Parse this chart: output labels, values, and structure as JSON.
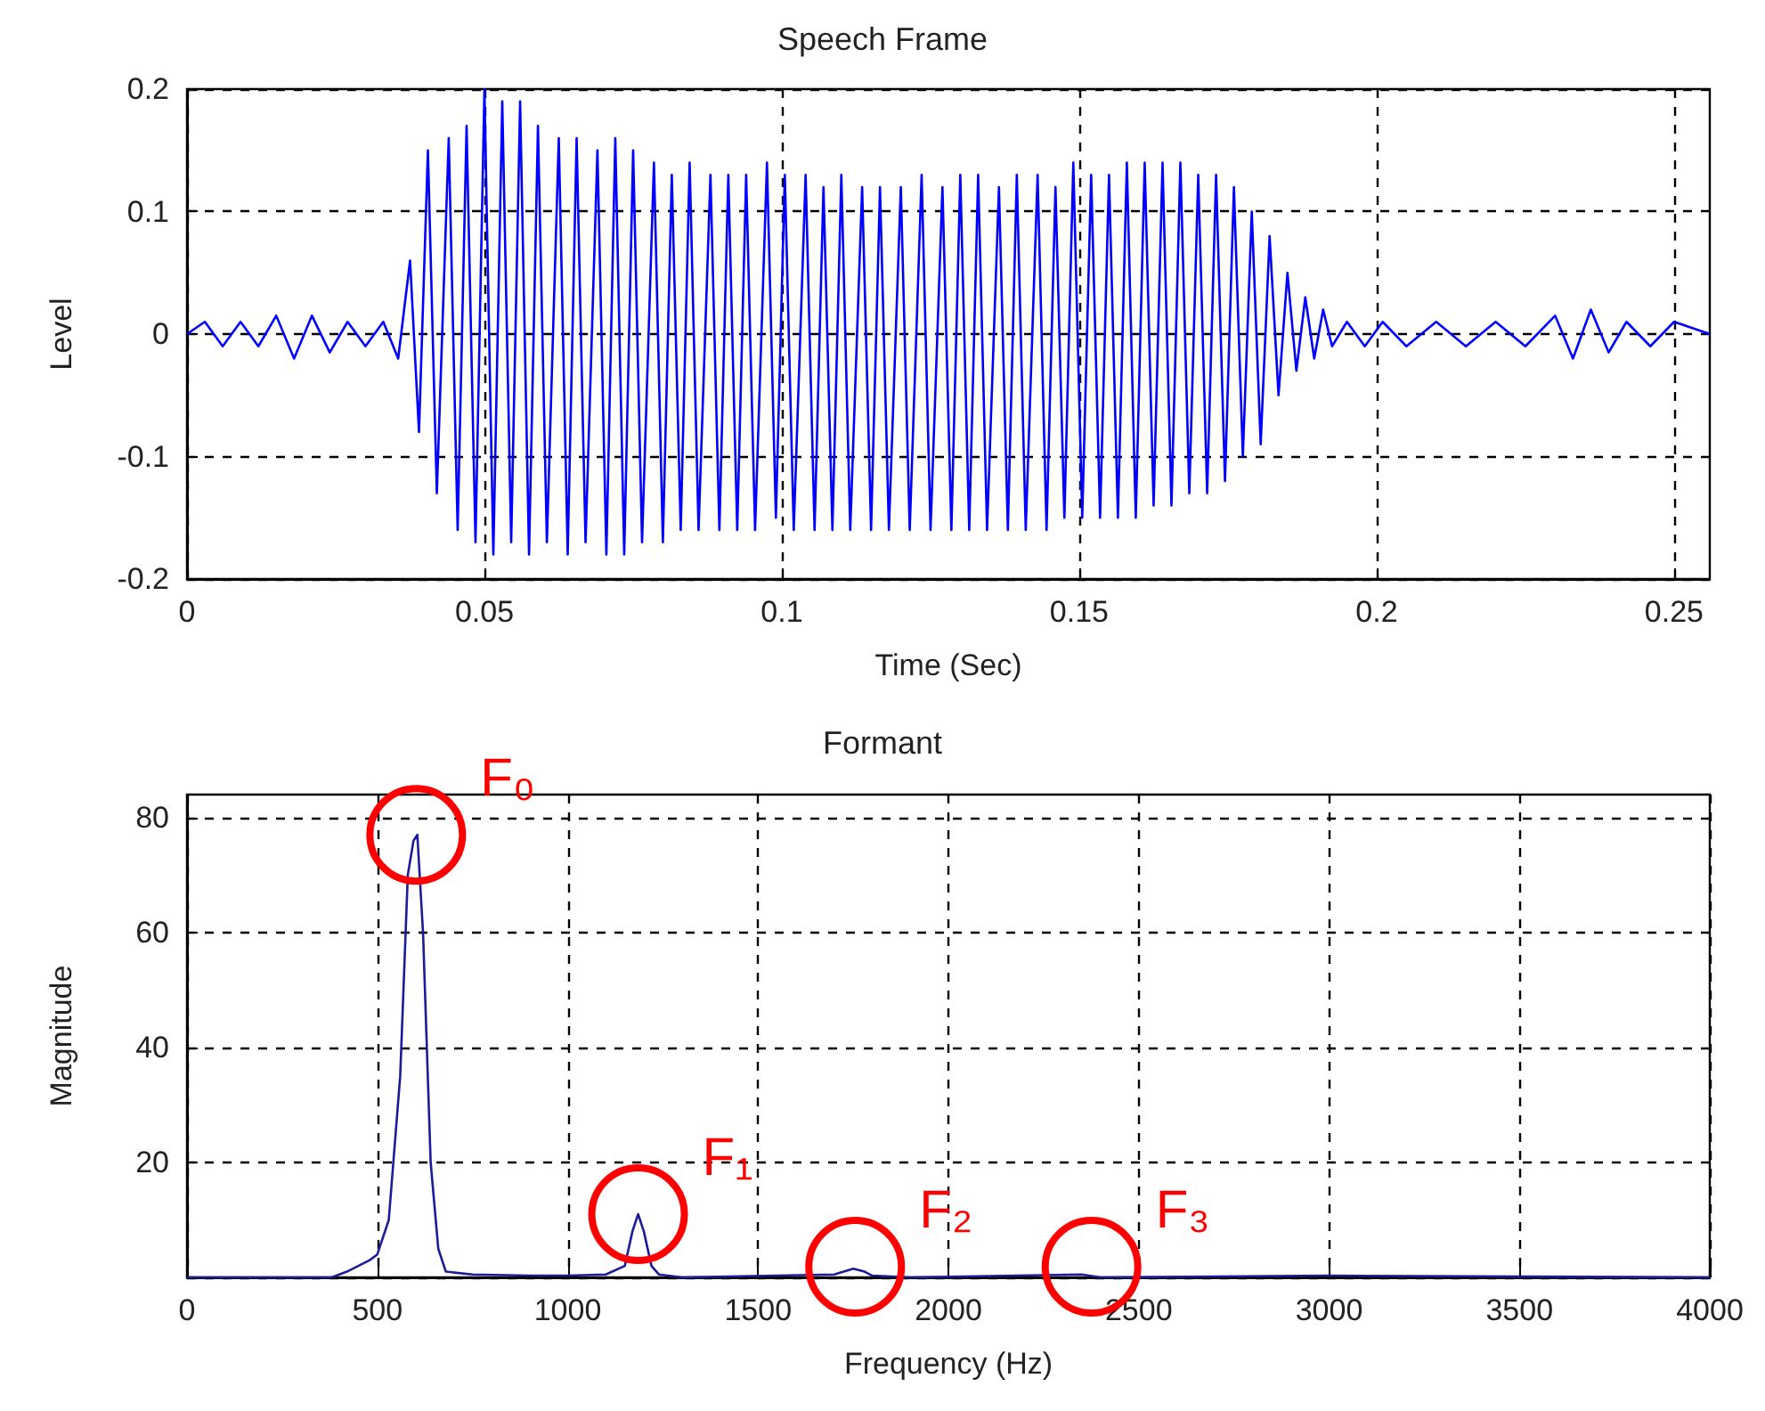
{
  "chart_data": [
    {
      "type": "line",
      "title": "Speech Frame",
      "xlabel": "Time (Sec)",
      "ylabel": "Level",
      "xlim": [
        0,
        0.256
      ],
      "ylim": [
        -0.2,
        0.2
      ],
      "xticks": [
        0,
        0.05,
        0.1,
        0.15,
        0.2,
        0.25
      ],
      "yticks": [
        -0.2,
        -0.1,
        0,
        0.1,
        0.2
      ],
      "grid": true,
      "marker": "none",
      "line_style": "solid",
      "series": [
        {
          "color": "#0000ff",
          "x": [
            0,
            0.003,
            0.006,
            0.009,
            0.012,
            0.015,
            0.018,
            0.021,
            0.024,
            0.027,
            0.03,
            0.033,
            0.0355,
            0.0375,
            0.039,
            0.0405,
            0.042,
            0.044,
            0.0455,
            0.047,
            0.0485,
            0.05,
            0.0515,
            0.053,
            0.0545,
            0.056,
            0.0575,
            0.059,
            0.0605,
            0.0625,
            0.064,
            0.0655,
            0.067,
            0.069,
            0.0705,
            0.072,
            0.0735,
            0.075,
            0.0765,
            0.0785,
            0.08,
            0.0815,
            0.083,
            0.0845,
            0.086,
            0.088,
            0.0895,
            0.091,
            0.0925,
            0.094,
            0.0955,
            0.0975,
            0.099,
            0.1005,
            0.102,
            0.104,
            0.1055,
            0.107,
            0.1085,
            0.11,
            0.1115,
            0.1135,
            0.115,
            0.1165,
            0.118,
            0.12,
            0.1215,
            0.1235,
            0.125,
            0.127,
            0.1285,
            0.13,
            0.1315,
            0.133,
            0.1345,
            0.1365,
            0.138,
            0.1395,
            0.141,
            0.143,
            0.1445,
            0.146,
            0.1475,
            0.149,
            0.1505,
            0.152,
            0.1535,
            0.155,
            0.1565,
            0.158,
            0.1595,
            0.161,
            0.1625,
            0.164,
            0.1655,
            0.167,
            0.1685,
            0.17,
            0.1715,
            0.173,
            0.1745,
            0.176,
            0.1775,
            0.179,
            0.1805,
            0.182,
            0.1835,
            0.185,
            0.1865,
            0.188,
            0.1895,
            0.191,
            0.1925,
            0.195,
            0.198,
            0.201,
            0.205,
            0.21,
            0.215,
            0.22,
            0.225,
            0.23,
            0.233,
            0.236,
            0.239,
            0.242,
            0.246,
            0.25,
            0.256
          ],
          "values": [
            0,
            0.01,
            -0.01,
            0.01,
            -0.01,
            0.015,
            -0.02,
            0.015,
            -0.015,
            0.01,
            -0.01,
            0.01,
            -0.02,
            0.06,
            -0.08,
            0.15,
            -0.13,
            0.16,
            -0.16,
            0.17,
            -0.17,
            0.2,
            -0.18,
            0.19,
            -0.17,
            0.19,
            -0.18,
            0.17,
            -0.17,
            0.16,
            -0.18,
            0.16,
            -0.17,
            0.15,
            -0.18,
            0.16,
            -0.18,
            0.15,
            -0.17,
            0.14,
            -0.17,
            0.13,
            -0.16,
            0.14,
            -0.16,
            0.13,
            -0.16,
            0.13,
            -0.16,
            0.13,
            -0.16,
            0.14,
            -0.15,
            0.13,
            -0.16,
            0.13,
            -0.16,
            0.12,
            -0.16,
            0.13,
            -0.16,
            0.12,
            -0.16,
            0.12,
            -0.16,
            0.12,
            -0.16,
            0.13,
            -0.16,
            0.12,
            -0.16,
            0.13,
            -0.16,
            0.13,
            -0.16,
            0.12,
            -0.16,
            0.13,
            -0.16,
            0.13,
            -0.16,
            0.12,
            -0.15,
            0.14,
            -0.15,
            0.13,
            -0.15,
            0.13,
            -0.15,
            0.14,
            -0.15,
            0.14,
            -0.14,
            0.14,
            -0.14,
            0.14,
            -0.13,
            0.13,
            -0.13,
            0.13,
            -0.12,
            0.12,
            -0.1,
            0.1,
            -0.09,
            0.08,
            -0.05,
            0.05,
            -0.03,
            0.03,
            -0.02,
            0.02,
            -0.01,
            0.01,
            -0.01,
            0.01,
            -0.01,
            0.01,
            -0.01,
            0.01,
            -0.01,
            0.015,
            -0.02,
            0.02,
            -0.015,
            0.01,
            -0.01,
            0.01,
            0
          ]
        }
      ]
    },
    {
      "type": "line",
      "title": "Formant",
      "xlabel": "Frequency (Hz)",
      "ylabel": "Magnitude",
      "xlim": [
        0,
        4000
      ],
      "ylim": [
        0,
        84
      ],
      "xticks": [
        0,
        500,
        1000,
        1500,
        2000,
        2500,
        3000,
        3500,
        4000
      ],
      "yticks": [
        {
          "value": 0,
          "label": null
        },
        20,
        40,
        60,
        80
      ],
      "grid": true,
      "marker": "none",
      "line_style": "solid",
      "series": [
        {
          "color": "#1c1c9a",
          "x": [
            0,
            380,
            420,
            480,
            500,
            530,
            560,
            580,
            595,
            605,
            620,
            640,
            660,
            680,
            750,
            900,
            1000,
            1100,
            1150,
            1170,
            1185,
            1200,
            1220,
            1240,
            1300,
            1700,
            1750,
            1780,
            1800,
            1900,
            2350,
            2400,
            3000,
            4000
          ],
          "values": [
            0,
            0,
            1,
            3,
            4,
            10,
            35,
            70,
            76,
            77,
            60,
            20,
            5,
            1,
            0.5,
            0.3,
            0.3,
            0.5,
            2,
            8,
            11,
            8,
            2,
            0.5,
            0,
            0.5,
            1.5,
            1,
            0.3,
            0,
            0.5,
            0,
            0.3,
            0
          ]
        }
      ],
      "annotations": [
        {
          "text": "F₀",
          "x": 602,
          "y": 77
        },
        {
          "text": "F₁",
          "x": 1185,
          "y": 11
        },
        {
          "text": "F₂",
          "x": 1755,
          "y": 1.5
        },
        {
          "text": "F₃",
          "x": 2376,
          "y": 0.5
        }
      ]
    }
  ]
}
